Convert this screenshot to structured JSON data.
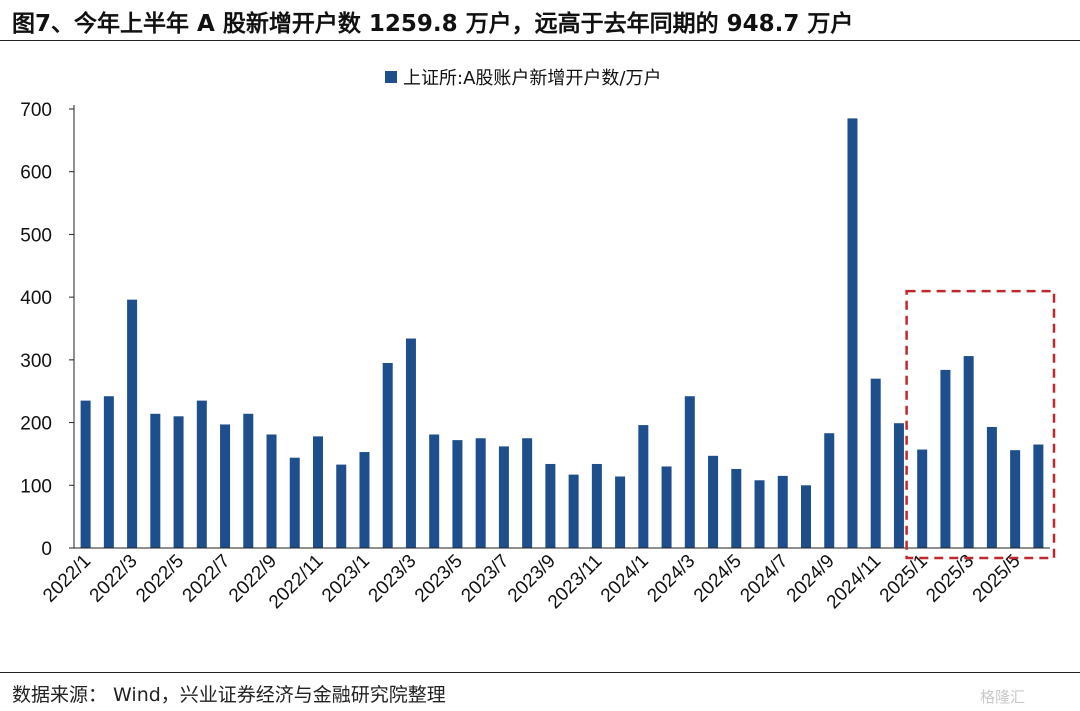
{
  "header": {
    "title": "图7、今年上半年 A 股新增开户数 1259.8 万户，远高于去年同期的 948.7 万户"
  },
  "footer": {
    "source": "数据来源： Wind，兴业证券经济与金融研究院整理",
    "watermark": "格隆汇"
  },
  "chart_data": {
    "type": "bar",
    "title": "",
    "xlabel": "",
    "ylabel": "",
    "ylim": [
      0,
      700
    ],
    "yticks": [
      0,
      100,
      200,
      300,
      400,
      500,
      600,
      700
    ],
    "grid": false,
    "legend_position": "top-center",
    "bar_color": "#1f4e8c",
    "highlight_color": "#c0282d",
    "highlight_range": [
      "2025/1",
      "2025/6"
    ],
    "categories": [
      "2022/1",
      "2022/2",
      "2022/3",
      "2022/4",
      "2022/5",
      "2022/6",
      "2022/7",
      "2022/8",
      "2022/9",
      "2022/10",
      "2022/11",
      "2022/12",
      "2023/1",
      "2023/2",
      "2023/3",
      "2023/4",
      "2023/5",
      "2023/6",
      "2023/7",
      "2023/8",
      "2023/9",
      "2023/10",
      "2023/11",
      "2023/12",
      "2024/1",
      "2024/2",
      "2024/3",
      "2024/4",
      "2024/5",
      "2024/6",
      "2024/7",
      "2024/8",
      "2024/9",
      "2024/10",
      "2024/11",
      "2024/12",
      "2025/1",
      "2025/2",
      "2025/3",
      "2025/4",
      "2025/5",
      "2025/6"
    ],
    "tick_labels": [
      "2022/1",
      "2022/3",
      "2022/5",
      "2022/7",
      "2022/9",
      "2022/11",
      "2023/1",
      "2023/3",
      "2023/5",
      "2023/7",
      "2023/9",
      "2023/11",
      "2024/1",
      "2024/3",
      "2024/5",
      "2024/7",
      "2024/9",
      "2024/11",
      "2025/1",
      "2025/3",
      "2025/5"
    ],
    "series": [
      {
        "name": "上证所:A股账户新增开户数/万户",
        "values": [
          235,
          242,
          396,
          214,
          210,
          235,
          197,
          214,
          181,
          144,
          178,
          133,
          153,
          295,
          334,
          181,
          172,
          175,
          162,
          175,
          134,
          117,
          134,
          114,
          196,
          130,
          242,
          147,
          126,
          108,
          115,
          100,
          183,
          685,
          270,
          199,
          157,
          284,
          306,
          193,
          156,
          165
        ]
      }
    ]
  }
}
